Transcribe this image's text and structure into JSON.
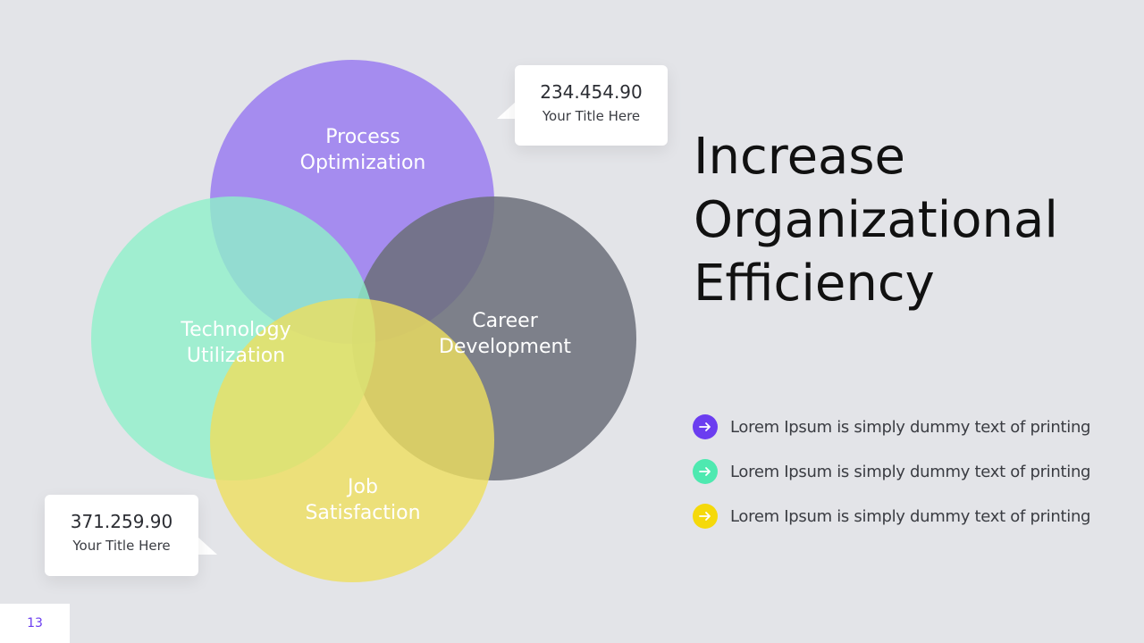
{
  "diagram": {
    "circles": [
      {
        "label_line1": "Process",
        "label_line2": "Optimization",
        "color": "#9a7cf0"
      },
      {
        "label_line1": "Career",
        "label_line2": "Development",
        "color": "#6b6f79"
      },
      {
        "label_line1": "Technology",
        "label_line2": "Utilization",
        "color": "#8ff0c9"
      },
      {
        "label_line1": "Job",
        "label_line2": "Satisfaction",
        "color": "#eede5e"
      }
    ]
  },
  "callouts": [
    {
      "value": "234.454.90",
      "title": "Your Title Here"
    },
    {
      "value": "371.259.90",
      "title": "Your Title Here"
    }
  ],
  "heading": {
    "line1": "Increase",
    "line2": "Organizational",
    "line3": "Efficiency"
  },
  "bullets": [
    {
      "text": "Lorem Ipsum is simply dummy text of printing",
      "color": "#6b3df0",
      "icon": "arrow-right-icon"
    },
    {
      "text": "Lorem Ipsum is simply dummy text of printing",
      "color": "#4ee9b0",
      "icon": "arrow-right-icon"
    },
    {
      "text": "Lorem Ipsum is simply dummy text of printing",
      "color": "#f5d90a",
      "icon": "arrow-right-icon"
    }
  ],
  "page_number": "13"
}
